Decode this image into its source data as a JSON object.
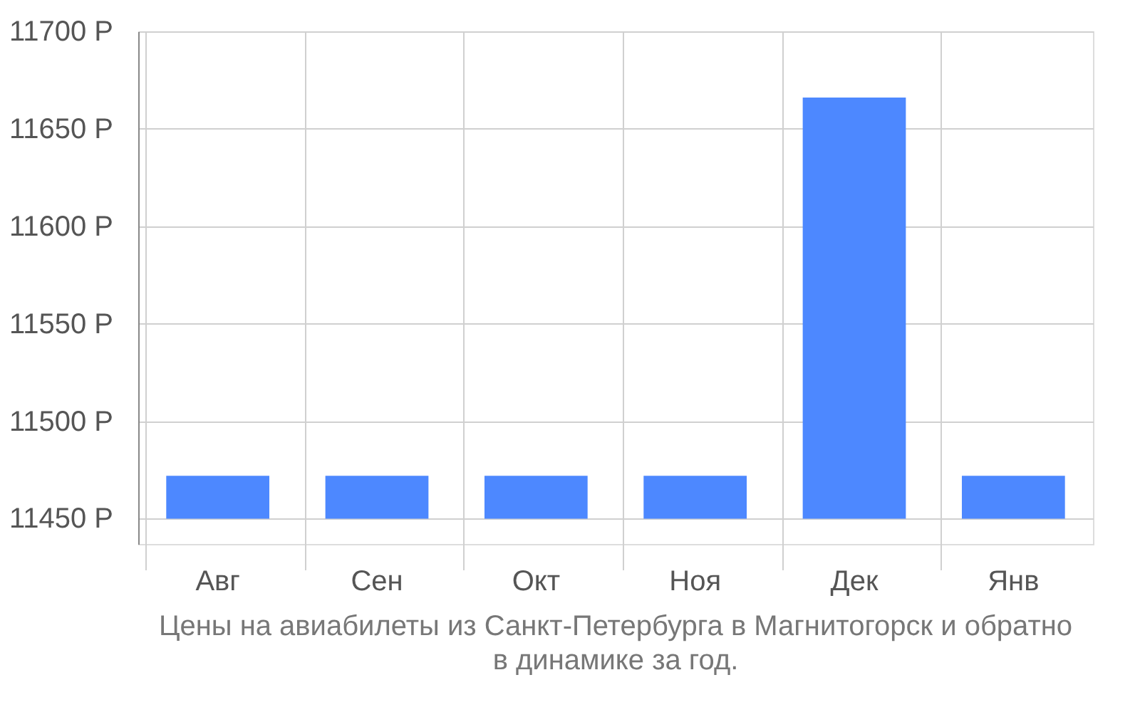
{
  "chart_data": {
    "type": "bar",
    "title": [
      "Цены на авиабилеты из Санкт-Петербурга в Магнитогорск и обратно",
      "в динамике за год."
    ],
    "categories": [
      "Авг",
      "Сен",
      "Окт",
      "Ноя",
      "Дек",
      "Янв"
    ],
    "base": [
      11450,
      11450,
      11450,
      11450,
      11450,
      11450
    ],
    "values": [
      22,
      22,
      22,
      22,
      216,
      22
    ],
    "color": "#4d88ff",
    "ylim": [
      11437,
      11700
    ],
    "yticks": [
      {
        "value": 11450,
        "label": "11450 Р"
      },
      {
        "value": 11500,
        "label": "11500 Р"
      },
      {
        "value": 11550,
        "label": "11550 Р"
      },
      {
        "value": 11600,
        "label": "11600 Р"
      },
      {
        "value": 11650,
        "label": "11650 Р"
      },
      {
        "value": 11700,
        "label": "11700 Р"
      }
    ],
    "grid": true
  }
}
